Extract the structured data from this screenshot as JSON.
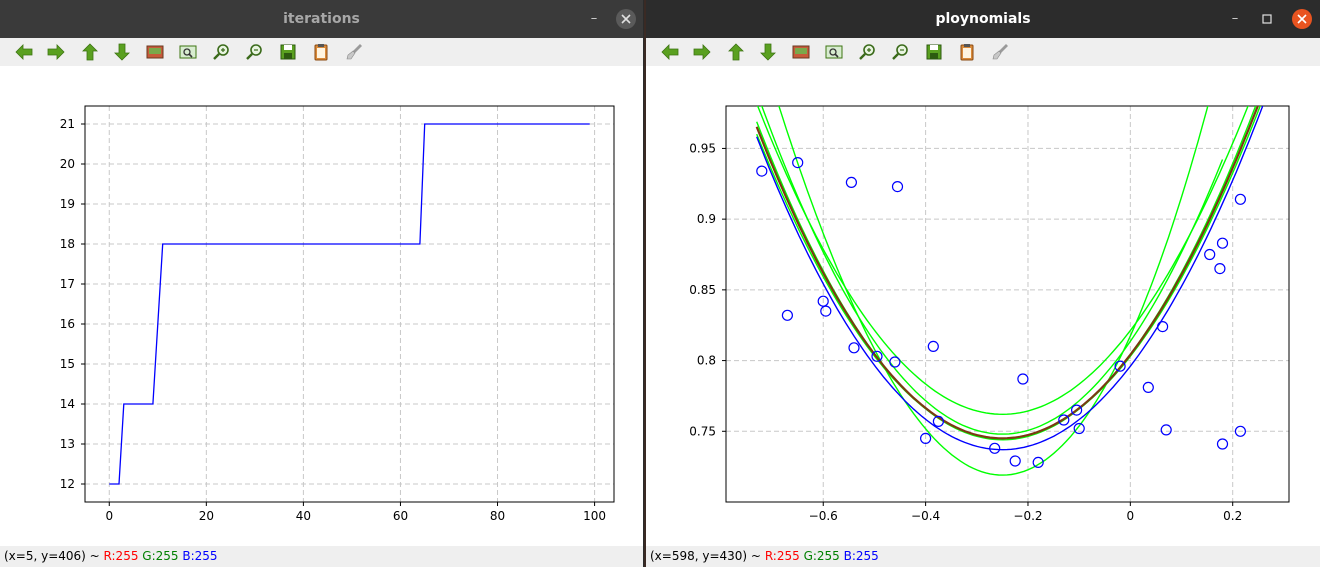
{
  "windows": {
    "left": {
      "title": "iterations",
      "status": {
        "coords": "(x=5, y=406) ~",
        "r": "R:255",
        "g": "G:255",
        "b": "B:255"
      }
    },
    "right": {
      "title": "ploynomials",
      "status": {
        "coords": "(x=598, y=430) ~",
        "r": "R:255",
        "g": "G:255",
        "b": "B:255"
      }
    }
  },
  "toolbar_icons": [
    "arrow-left-icon",
    "arrow-right-icon",
    "arrow-up-icon",
    "arrow-down-icon",
    "image-icon",
    "zoom-fit-icon",
    "zoom-in-icon",
    "zoom-out-icon",
    "save-icon",
    "clipboard-icon",
    "brush-icon"
  ],
  "colors": {
    "line_blue": "#0000ff",
    "fit_green": "#00ff00",
    "fit_brown": "#7a3b12",
    "close_orange": "#e95420"
  },
  "chart_data": [
    {
      "type": "line",
      "x_ticks": [
        "0",
        "20",
        "40",
        "60",
        "80",
        "100"
      ],
      "y_ticks": [
        "12",
        "13",
        "14",
        "15",
        "16",
        "17",
        "18",
        "19",
        "20",
        "21"
      ],
      "xlim": [
        -5,
        104
      ],
      "ylim": [
        11.55,
        21.45
      ],
      "grid": true,
      "series": [
        {
          "x": [
            0,
            2,
            3,
            9,
            11,
            64,
            65,
            99
          ],
          "y": [
            12,
            12,
            14,
            14,
            18,
            18,
            21,
            21
          ]
        }
      ]
    },
    {
      "type": "scatter",
      "x_ticks": [
        "−0.6",
        "−0.4",
        "−0.2",
        "0",
        "0.2"
      ],
      "y_ticks": [
        "0.75",
        "0.8",
        "0.85",
        "0.9",
        "0.95"
      ],
      "xlim": [
        -0.79,
        0.31
      ],
      "ylim": [
        0.7,
        0.98
      ],
      "grid": true,
      "points": {
        "x": [
          -0.72,
          -0.65,
          -0.67,
          -0.6,
          -0.595,
          -0.545,
          -0.54,
          -0.495,
          -0.455,
          -0.46,
          -0.385,
          -0.375,
          -0.4,
          -0.265,
          -0.225,
          -0.21,
          -0.18,
          -0.13,
          -0.105,
          -0.1,
          -0.02,
          0.035,
          0.063,
          0.07,
          0.155,
          0.175,
          0.18,
          0.18,
          0.215,
          0.215
        ],
        "y": [
          0.934,
          0.94,
          0.832,
          0.842,
          0.835,
          0.926,
          0.809,
          0.803,
          0.923,
          0.799,
          0.81,
          0.757,
          0.745,
          0.738,
          0.729,
          0.787,
          0.728,
          0.758,
          0.765,
          0.752,
          0.796,
          0.781,
          0.824,
          0.751,
          0.875,
          0.865,
          0.883,
          0.741,
          0.914,
          0.75
        ]
      },
      "curves": [
        {
          "color": "green",
          "coeffs": [
            0.748,
            0,
            1.05
          ],
          "x_range": [
            -0.73,
            0.18
          ]
        },
        {
          "color": "green",
          "coeffs": [
            0.719,
            0.3,
            1.5
          ],
          "x_range": [
            -0.73,
            0.265
          ]
        },
        {
          "color": "green",
          "coeffs": [
            0.762,
            -0.0076,
            0.95
          ],
          "x_range": [
            -0.73,
            0.265
          ]
        },
        {
          "color": "green",
          "coeffs": [
            0.745,
            -0.0076,
            0.93
          ],
          "x_range": [
            -0.73,
            0.265
          ]
        },
        {
          "color": "green",
          "coeffs": [
            0.744,
            -0.0125,
            0.97
          ],
          "x_range": [
            -0.73,
            0.265
          ]
        },
        {
          "color": "blue",
          "coeffs": [
            0.737,
            -0.021,
            0.95
          ],
          "x_range": [
            -0.73,
            0.265
          ]
        },
        {
          "color": "brown",
          "coeffs": [
            0.745,
            -0.0125,
            0.95
          ],
          "x_range": [
            -0.73,
            0.265
          ]
        }
      ]
    }
  ]
}
